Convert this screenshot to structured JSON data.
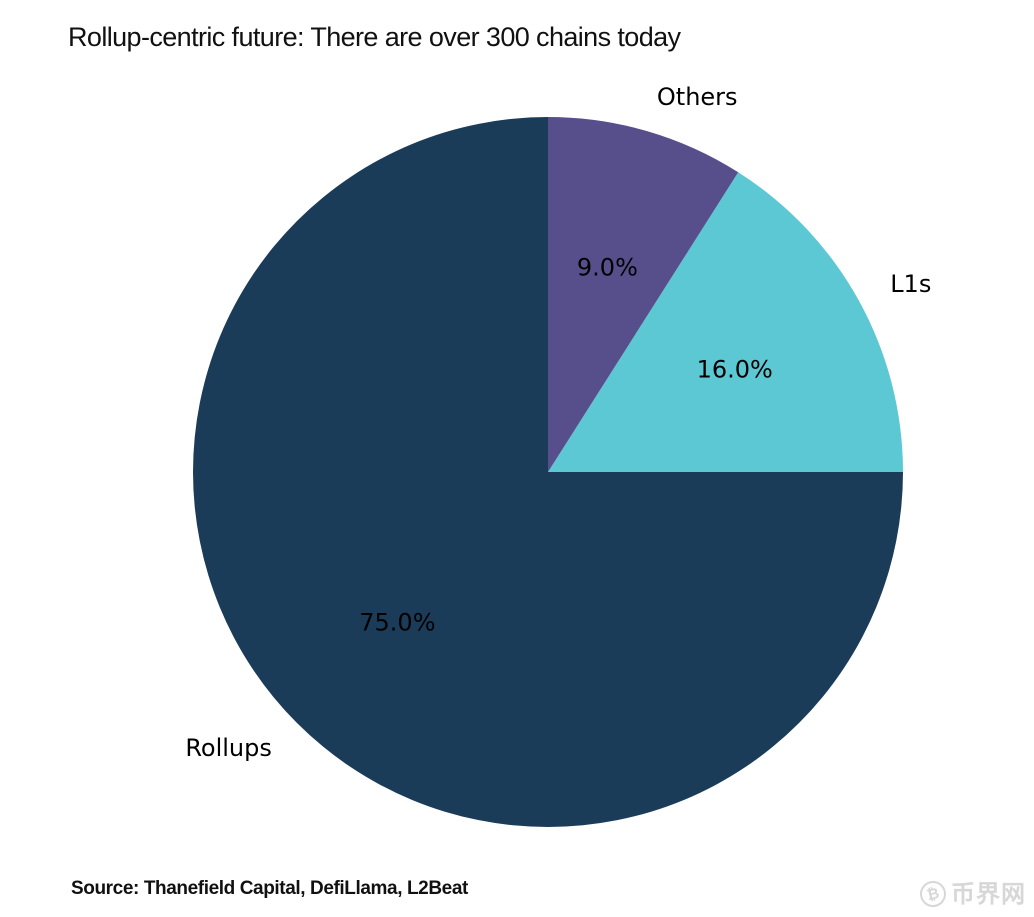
{
  "figure": {
    "title": "Rollup-centric future: There are over 300 chains today",
    "source": "Source: Thanefield Capital, DefiLlama, L2Beat"
  },
  "watermark": {
    "symbol": "₿",
    "text": "币界网",
    "color": "#d7d7d7"
  },
  "chart_data": {
    "type": "pie",
    "title": "Rollup-centric future: There are over 300 chains today",
    "categories": [
      "Rollups",
      "L1s",
      "Others"
    ],
    "values": [
      75.0,
      16.0,
      9.0
    ],
    "slices": [
      {
        "label": "Rollups",
        "value": 75.0,
        "pct_label": "75.0%",
        "color": "#1b3c59"
      },
      {
        "label": "L1s",
        "value": 16.0,
        "pct_label": "16.0%",
        "color": "#5cc8d4"
      },
      {
        "label": "Others",
        "value": 9.0,
        "pct_label": "9.0%",
        "color": "#574f8c"
      }
    ],
    "start_angle": 90,
    "direction": "counterclockwise",
    "label_distance": 1.1,
    "pct_distance": 0.6,
    "legend": "none",
    "background": "#ffffff",
    "label_color": "#000000"
  }
}
